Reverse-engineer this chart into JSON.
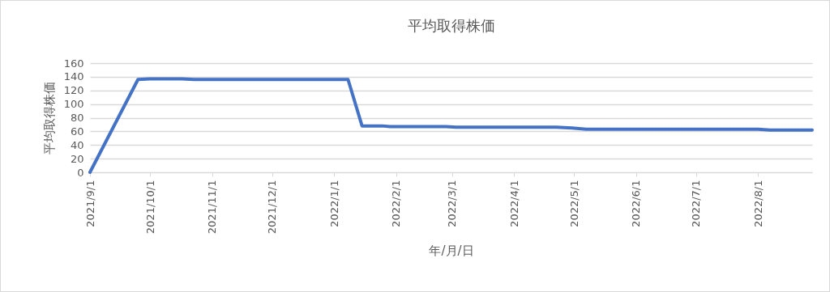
{
  "chart_data": {
    "type": "line",
    "title": "平均取得株価",
    "xlabel": "年/月/日",
    "ylabel": "平均取得株価",
    "x": [
      "2021-09-01",
      "2021-09-25",
      "2021-10-01",
      "2021-10-17",
      "2021-10-23",
      "2022-01-08",
      "2022-01-15",
      "2022-01-25",
      "2022-01-29",
      "2022-02-26",
      "2022-03-03",
      "2022-04-22",
      "2022-04-30",
      "2022-05-07",
      "2022-08-01",
      "2022-08-07",
      "2022-08-28"
    ],
    "series": [
      {
        "color": "#4472c4",
        "values": [
          0,
          136,
          137,
          137,
          136,
          136,
          68,
          68,
          67,
          67,
          66,
          66,
          65,
          63,
          63,
          62,
          62
        ]
      }
    ],
    "xlim": [
      "2021-09-01",
      "2022-08-28"
    ],
    "xticks": [
      {
        "value": "2021-09-01",
        "label": "2021/9/1"
      },
      {
        "value": "2021-10-01",
        "label": "2021/10/1"
      },
      {
        "value": "2021-11-01",
        "label": "2021/11/1"
      },
      {
        "value": "2021-12-01",
        "label": "2021/12/1"
      },
      {
        "value": "2022-01-01",
        "label": "2022/1/1"
      },
      {
        "value": "2022-02-01",
        "label": "2022/2/1"
      },
      {
        "value": "2022-03-01",
        "label": "2022/3/1"
      },
      {
        "value": "2022-04-01",
        "label": "2022/4/1"
      },
      {
        "value": "2022-05-01",
        "label": "2022/5/1"
      },
      {
        "value": "2022-06-01",
        "label": "2022/6/1"
      },
      {
        "value": "2022-07-01",
        "label": "2022/7/1"
      },
      {
        "value": "2022-08-01",
        "label": "2022/8/1"
      }
    ],
    "ylim": [
      0,
      160
    ],
    "yticks": [
      0,
      20,
      40,
      60,
      80,
      100,
      120,
      140,
      160
    ],
    "grid": "y",
    "marker": "none",
    "line_style": "solid"
  }
}
